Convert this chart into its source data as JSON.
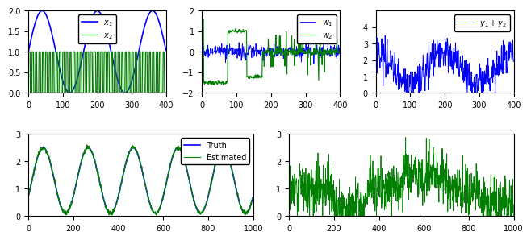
{
  "top_left": {
    "x_range": [
      0,
      400
    ],
    "y_range": [
      0,
      2
    ],
    "legend": [
      "$x_1$",
      "$x_2$"
    ],
    "colors": [
      "blue",
      "green"
    ]
  },
  "top_mid": {
    "x_range": [
      0,
      400
    ],
    "y_range": [
      -2,
      2
    ],
    "legend": [
      "$w_1$",
      "$w_2$"
    ],
    "colors": [
      "blue",
      "green"
    ]
  },
  "top_right": {
    "x_range": [
      0,
      400
    ],
    "y_range": [
      0,
      5
    ],
    "legend": [
      "$y_1 + y_2$"
    ],
    "colors": [
      "blue"
    ]
  },
  "bot_left": {
    "x_range": [
      0,
      1000
    ],
    "y_range": [
      0,
      3
    ],
    "legend": [
      "Truth",
      "Estimated"
    ],
    "colors": [
      "blue",
      "green"
    ]
  },
  "bot_right": {
    "x_range": [
      0,
      1000
    ],
    "y_range": [
      0,
      3
    ],
    "colors": [
      "blue",
      "green"
    ]
  },
  "background": "#ffffff",
  "fig_width": 6.4,
  "fig_height": 2.93,
  "dpi": 100
}
